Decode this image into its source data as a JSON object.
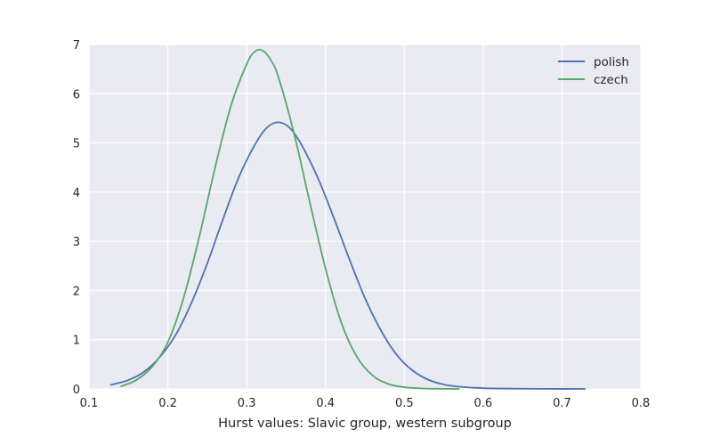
{
  "chart_data": {
    "type": "line",
    "title": "",
    "xlabel": "Hurst values: Slavic group, western subgroup",
    "ylabel": "",
    "xlim": [
      0.1,
      0.8
    ],
    "ylim": [
      0,
      7
    ],
    "xticks": [
      "0.1",
      "0.2",
      "0.3",
      "0.4",
      "0.5",
      "0.6",
      "0.7",
      "0.8"
    ],
    "yticks": [
      "0",
      "1",
      "2",
      "3",
      "4",
      "5",
      "6",
      "7"
    ],
    "grid": true,
    "legend_position": "top-right",
    "series": [
      {
        "name": "polish",
        "color": "#4c72b0",
        "x": [
          0.127,
          0.15,
          0.17,
          0.19,
          0.21,
          0.23,
          0.25,
          0.27,
          0.29,
          0.31,
          0.325,
          0.34,
          0.355,
          0.37,
          0.39,
          0.41,
          0.43,
          0.45,
          0.47,
          0.49,
          0.51,
          0.53,
          0.55,
          0.57,
          0.6,
          0.65,
          0.7,
          0.73
        ],
        "y": [
          0.08,
          0.18,
          0.35,
          0.65,
          1.1,
          1.75,
          2.55,
          3.45,
          4.3,
          4.95,
          5.3,
          5.42,
          5.3,
          4.95,
          4.3,
          3.5,
          2.65,
          1.85,
          1.2,
          0.7,
          0.38,
          0.19,
          0.09,
          0.045,
          0.015,
          0.004,
          0.001,
          0.0
        ]
      },
      {
        "name": "czech",
        "color": "#55a868",
        "x": [
          0.14,
          0.16,
          0.18,
          0.2,
          0.22,
          0.24,
          0.26,
          0.28,
          0.3,
          0.31,
          0.32,
          0.33,
          0.34,
          0.36,
          0.38,
          0.4,
          0.42,
          0.44,
          0.46,
          0.48,
          0.5,
          0.52,
          0.54,
          0.57
        ],
        "y": [
          0.05,
          0.18,
          0.45,
          0.95,
          1.85,
          3.1,
          4.5,
          5.75,
          6.6,
          6.85,
          6.88,
          6.7,
          6.35,
          5.2,
          3.8,
          2.45,
          1.35,
          0.65,
          0.27,
          0.1,
          0.035,
          0.012,
          0.004,
          0.0
        ]
      }
    ]
  }
}
